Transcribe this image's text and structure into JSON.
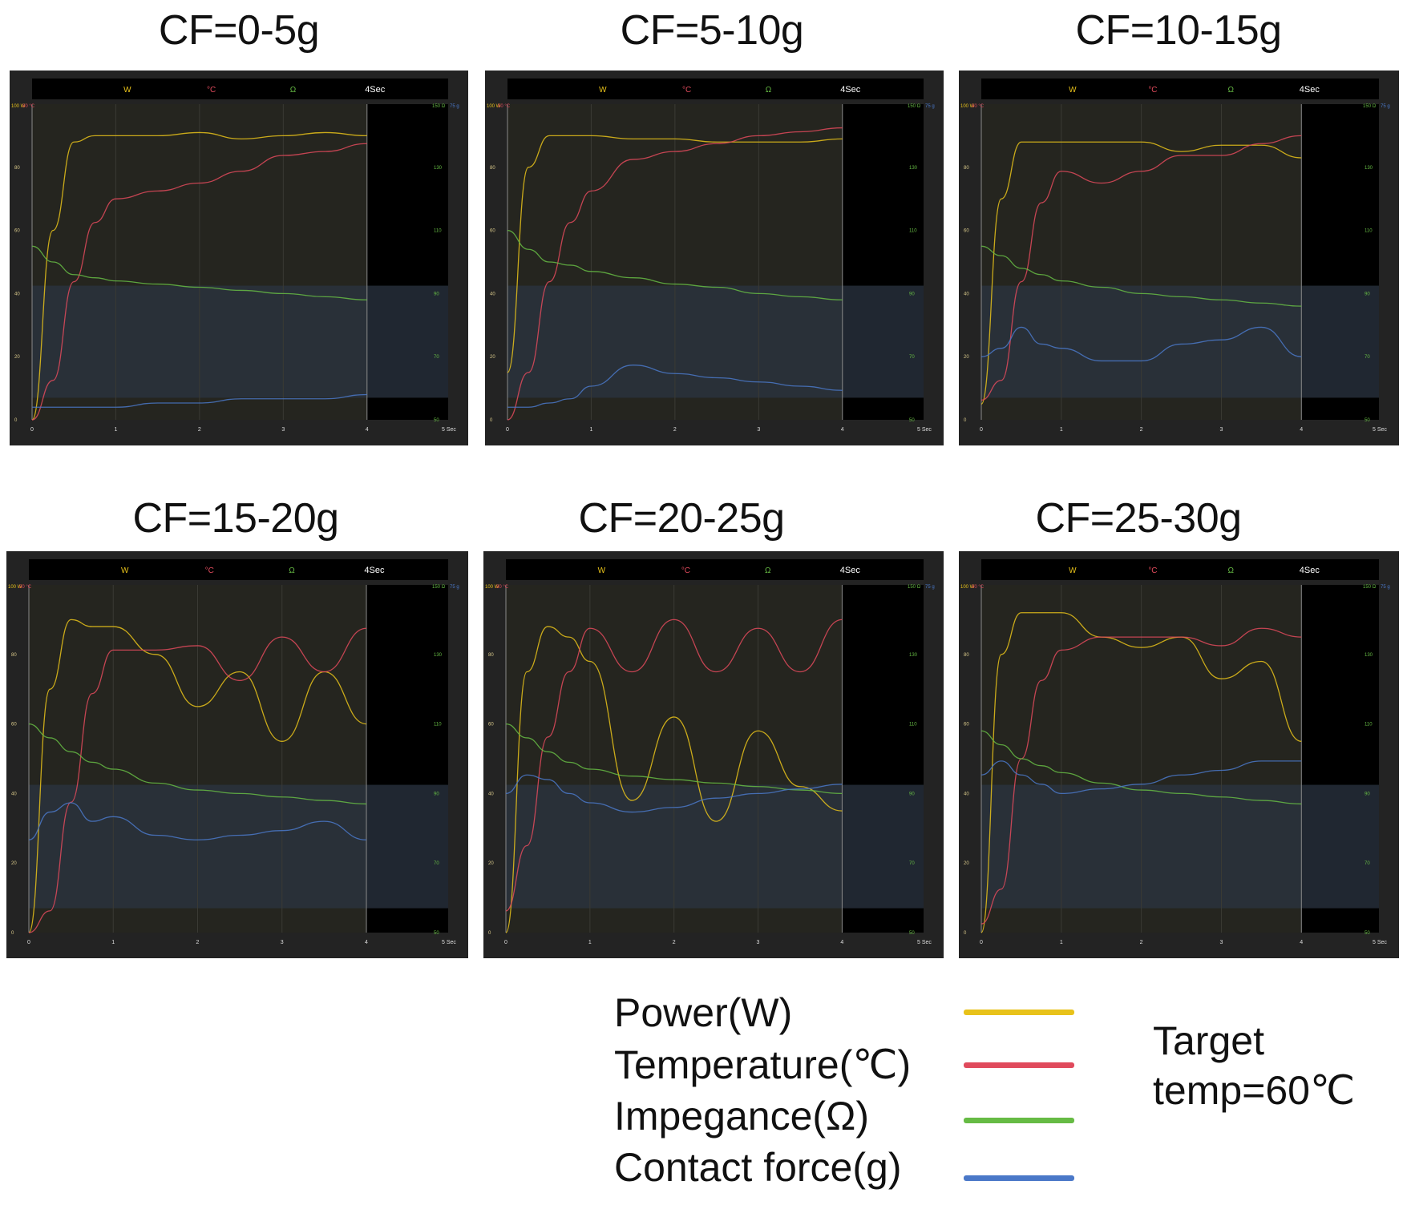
{
  "colors": {
    "power": "#e8c21a",
    "temperature": "#e04a5c",
    "impedance": "#66bb44",
    "contact_force": "#4a78c8",
    "panel_bg": "#232323",
    "plot_bg": "#25251f",
    "target_band": "#2b3442",
    "black_area": "#000000"
  },
  "header": {
    "w": "W",
    "c": "°C",
    "o": "Ω",
    "time": "4Sec"
  },
  "axes": {
    "left_top": [
      "100 W",
      "80 °C"
    ],
    "left_ticks": [
      "80",
      "60",
      "40",
      "20",
      "0"
    ],
    "right_top": [
      "150 Ω",
      "75 g"
    ],
    "right_ticks": [
      "130",
      "110",
      "90",
      "70",
      "50"
    ],
    "x_ticks": [
      "0",
      "1",
      "2",
      "3",
      "4",
      "5 Sec"
    ]
  },
  "legend": {
    "items": [
      {
        "label": "Power(W)",
        "color": "#e8c21a"
      },
      {
        "label": "Temperature(℃)",
        "color": "#e04a5c"
      },
      {
        "label": "Impegance(Ω)",
        "color": "#66bb44"
      },
      {
        "label": "Contact force(g)",
        "color": "#4a78c8"
      }
    ],
    "note_line1": "Target",
    "note_line2": "temp=60℃"
  },
  "chart_data": [
    {
      "type": "line",
      "title": "CF=0-5g",
      "xlabel": "Sec",
      "xlim": [
        0,
        5
      ],
      "x": [
        0,
        0.25,
        0.5,
        0.75,
        1,
        1.5,
        2,
        2.5,
        3,
        3.5,
        4
      ],
      "series": [
        {
          "name": "Power(W)",
          "axis": "0-100",
          "values": [
            0,
            60,
            88,
            90,
            90,
            90,
            91,
            89,
            90,
            91,
            90
          ]
        },
        {
          "name": "Temperature(°C)",
          "axis": "0-80",
          "values": [
            0,
            10,
            35,
            50,
            56,
            58,
            60,
            63,
            67,
            68,
            70
          ]
        },
        {
          "name": "Impedance(Ω)",
          "axis": "50-150",
          "values": [
            105,
            100,
            96,
            95,
            94,
            93,
            92,
            91,
            90,
            89,
            88
          ]
        },
        {
          "name": "Contact force(g)",
          "axis": "0-75",
          "values": [
            3,
            3,
            3,
            3,
            3,
            4,
            4,
            5,
            5,
            5,
            6
          ]
        }
      ]
    },
    {
      "type": "line",
      "title": "CF=5-10g",
      "xlabel": "Sec",
      "xlim": [
        0,
        5
      ],
      "x": [
        0,
        0.25,
        0.5,
        0.75,
        1,
        1.5,
        2,
        2.5,
        3,
        3.5,
        4
      ],
      "series": [
        {
          "name": "Power(W)",
          "axis": "0-100",
          "values": [
            15,
            80,
            90,
            90,
            90,
            89,
            89,
            88,
            88,
            88,
            89
          ]
        },
        {
          "name": "Temperature(°C)",
          "axis": "0-80",
          "values": [
            0,
            12,
            35,
            50,
            58,
            66,
            68,
            70,
            72,
            73,
            74
          ]
        },
        {
          "name": "Impedance(Ω)",
          "axis": "50-150",
          "values": [
            110,
            104,
            100,
            99,
            97,
            95,
            93,
            92,
            90,
            89,
            88
          ]
        },
        {
          "name": "Contact force(g)",
          "axis": "0-75",
          "values": [
            3,
            3,
            4,
            5,
            8,
            13,
            11,
            10,
            9,
            8,
            7
          ]
        }
      ]
    },
    {
      "type": "line",
      "title": "CF=10-15g",
      "xlabel": "Sec",
      "xlim": [
        0,
        5
      ],
      "x": [
        0,
        0.25,
        0.5,
        0.75,
        1,
        1.5,
        2,
        2.5,
        3,
        3.5,
        4
      ],
      "series": [
        {
          "name": "Power(W)",
          "axis": "0-100",
          "values": [
            5,
            70,
            88,
            88,
            88,
            88,
            88,
            85,
            87,
            87,
            83
          ]
        },
        {
          "name": "Temperature(°C)",
          "axis": "0-80",
          "values": [
            5,
            10,
            35,
            55,
            63,
            60,
            63,
            67,
            67,
            70,
            72
          ]
        },
        {
          "name": "Impedance(Ω)",
          "axis": "50-150",
          "values": [
            105,
            102,
            98,
            96,
            94,
            92,
            90,
            89,
            88,
            87,
            86
          ]
        },
        {
          "name": "Contact force(g)",
          "axis": "0-75",
          "values": [
            15,
            17,
            22,
            18,
            17,
            14,
            14,
            18,
            19,
            22,
            15
          ]
        }
      ]
    },
    {
      "type": "line",
      "title": "CF=15-20g",
      "xlabel": "Sec",
      "xlim": [
        0,
        5
      ],
      "x": [
        0,
        0.25,
        0.5,
        0.75,
        1,
        1.5,
        2,
        2.5,
        3,
        3.5,
        4
      ],
      "series": [
        {
          "name": "Power(W)",
          "axis": "0-100",
          "values": [
            0,
            70,
            90,
            88,
            88,
            80,
            65,
            75,
            55,
            75,
            60
          ]
        },
        {
          "name": "Temperature(°C)",
          "axis": "0-80",
          "values": [
            0,
            5,
            30,
            55,
            65,
            65,
            66,
            58,
            68,
            60,
            70
          ]
        },
        {
          "name": "Impedance(Ω)",
          "axis": "50-150",
          "values": [
            110,
            106,
            102,
            99,
            97,
            93,
            91,
            90,
            89,
            88,
            87
          ]
        },
        {
          "name": "Contact force(g)",
          "axis": "0-75",
          "values": [
            20,
            26,
            28,
            24,
            25,
            21,
            20,
            21,
            22,
            24,
            20
          ]
        }
      ]
    },
    {
      "type": "line",
      "title": "CF=20-25g",
      "xlabel": "Sec",
      "xlim": [
        0,
        5
      ],
      "x": [
        0,
        0.25,
        0.5,
        0.75,
        1,
        1.5,
        2,
        2.5,
        3,
        3.5,
        4
      ],
      "series": [
        {
          "name": "Power(W)",
          "axis": "0-100",
          "values": [
            0,
            75,
            88,
            85,
            78,
            38,
            62,
            32,
            58,
            42,
            35
          ]
        },
        {
          "name": "Temperature(°C)",
          "axis": "0-80",
          "values": [
            5,
            20,
            45,
            60,
            70,
            60,
            72,
            60,
            70,
            60,
            72
          ]
        },
        {
          "name": "Impedance(Ω)",
          "axis": "50-150",
          "values": [
            110,
            106,
            102,
            99,
            97,
            95,
            94,
            93,
            92,
            91,
            90
          ]
        },
        {
          "name": "Contact force(g)",
          "axis": "0-75",
          "values": [
            30,
            34,
            33,
            30,
            28,
            26,
            27,
            29,
            30,
            31,
            32
          ]
        }
      ]
    },
    {
      "type": "line",
      "title": "CF=25-30g",
      "xlabel": "Sec",
      "xlim": [
        0,
        5
      ],
      "x": [
        0,
        0.25,
        0.5,
        0.75,
        1,
        1.5,
        2,
        2.5,
        3,
        3.5,
        4
      ],
      "series": [
        {
          "name": "Power(W)",
          "axis": "0-100",
          "values": [
            0,
            80,
            92,
            92,
            92,
            85,
            82,
            85,
            73,
            78,
            55
          ]
        },
        {
          "name": "Temperature(°C)",
          "axis": "0-80",
          "values": [
            2,
            10,
            40,
            58,
            65,
            68,
            68,
            68,
            66,
            70,
            68
          ]
        },
        {
          "name": "Impedance(Ω)",
          "axis": "50-150",
          "values": [
            108,
            104,
            100,
            98,
            96,
            93,
            91,
            90,
            89,
            88,
            87
          ]
        },
        {
          "name": "Contact force(g)",
          "axis": "0-75",
          "values": [
            34,
            37,
            34,
            32,
            30,
            31,
            32,
            34,
            35,
            37,
            37
          ]
        }
      ]
    }
  ]
}
